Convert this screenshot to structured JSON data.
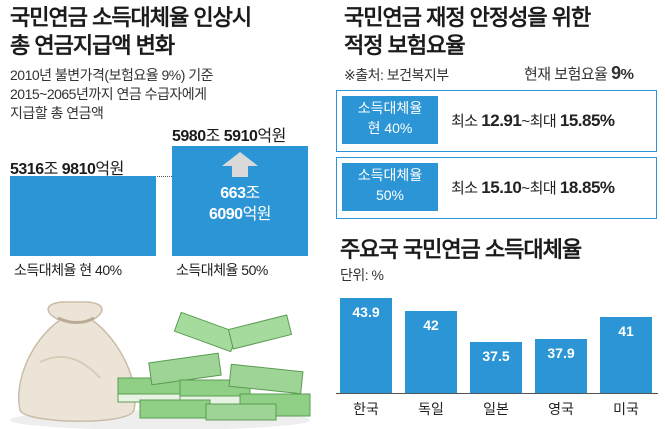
{
  "left": {
    "title_line1": "국민연금 소득대체율 인상시",
    "title_line2": "총 연금지급액 변화",
    "sub_line1": "2010년 불변가격(보험요율 9%) 기준",
    "sub_line2": "2015~2065년까지 연금 수급자에게",
    "sub_line3": "지급할 총 연금액",
    "bar1_value_a": "5316",
    "bar1_unit_a": "조 ",
    "bar1_value_b": "9810",
    "bar1_unit_b": "억원",
    "bar2_value_a": "5980",
    "bar2_unit_a": "조 ",
    "bar2_value_b": "5910",
    "bar2_unit_b": "억원",
    "increase_value_a": "663",
    "increase_unit_a": "조",
    "increase_value_b": "6090",
    "increase_unit_b": "억원",
    "bar1_label": "소득대체율 현 40%",
    "bar2_label": "소득대체율 50%",
    "colors": {
      "bar": "#2b95d6",
      "arrow": "#d9d9d9"
    }
  },
  "right_top": {
    "title_line1": "국민연금 재정 안정성을 위한",
    "title_line2": "적정 보험요율",
    "source": "※출처: 보건복지부",
    "current_prefix": "현재 보험요율 ",
    "current_value": "9",
    "current_unit": "%",
    "rows": [
      {
        "tag1": "소득대체율",
        "tag2": "현 40%",
        "pre": "최소 ",
        "min": "12.91",
        "mid": "~최대 ",
        "max": "15.85",
        "unit": "%"
      },
      {
        "tag1": "소득대체율",
        "tag2": "50%",
        "pre": "최소 ",
        "min": "15.10",
        "mid": "~최대 ",
        "max": "18.85",
        "unit": "%"
      }
    ]
  },
  "chart_data": [
    {
      "type": "bar",
      "title": "국민연금 소득대체율 인상시 총 연금지급액 변화",
      "categories": [
        "소득대체율 현 40%",
        "소득대체율 50%"
      ],
      "values": [
        5316.981,
        5980.591
      ],
      "value_labels": [
        "5316조 9810억원",
        "5980조 5910억원"
      ],
      "unit": "조원",
      "ylabel": "",
      "xlabel": ""
    },
    {
      "type": "bar",
      "title": "주요국 국민연금 소득대체율",
      "unit_label": "단위: %",
      "categories": [
        "한국",
        "독일",
        "일본",
        "영국",
        "미국"
      ],
      "values": [
        43.9,
        42,
        37.5,
        37.9,
        41
      ],
      "ylim": [
        30,
        45
      ],
      "xlabel": "",
      "ylabel": "%"
    }
  ]
}
